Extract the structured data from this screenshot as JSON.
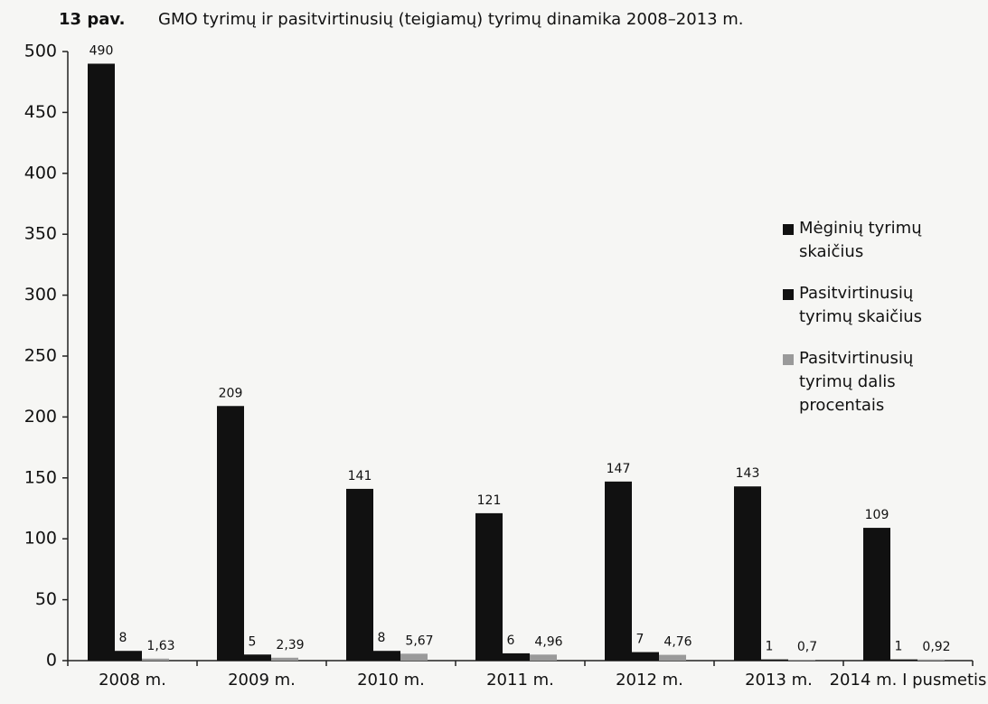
{
  "chart_data": {
    "type": "bar",
    "figure_label": "13 pav.",
    "title": "GMO tyrimų ir pasitvirtinusių (teigiamų) tyrimų dinamika 2008–2013 m.",
    "categories": [
      "2008 m.",
      "2009 m.",
      "2010 m.",
      "2011 m.",
      "2012 m.",
      "2013 m.",
      "2014 m. I pusmetis"
    ],
    "series": [
      {
        "name": "Mėginių tyrimų skaičius",
        "color": "#111111",
        "values": [
          490,
          209,
          141,
          121,
          147,
          143,
          109
        ]
      },
      {
        "name": "Pasitvirtinusių tyrimų skaičius",
        "color": "#111111",
        "values": [
          8,
          5,
          8,
          6,
          7,
          1,
          1
        ]
      },
      {
        "name": "Pasitvirtinusių tyrimų dalis procentais",
        "color": "#9a9a9a",
        "values": [
          1.63,
          2.39,
          5.67,
          4.96,
          4.76,
          0.7,
          0.92
        ],
        "value_labels": [
          "1,63",
          "2,39",
          "5,67",
          "4,96",
          "4,76",
          "0,7",
          "0,92"
        ]
      }
    ],
    "ylim": [
      0,
      500
    ],
    "yticks": [
      0,
      50,
      100,
      150,
      200,
      250,
      300,
      350,
      400,
      450,
      500
    ],
    "grid": false,
    "legend": "right"
  }
}
